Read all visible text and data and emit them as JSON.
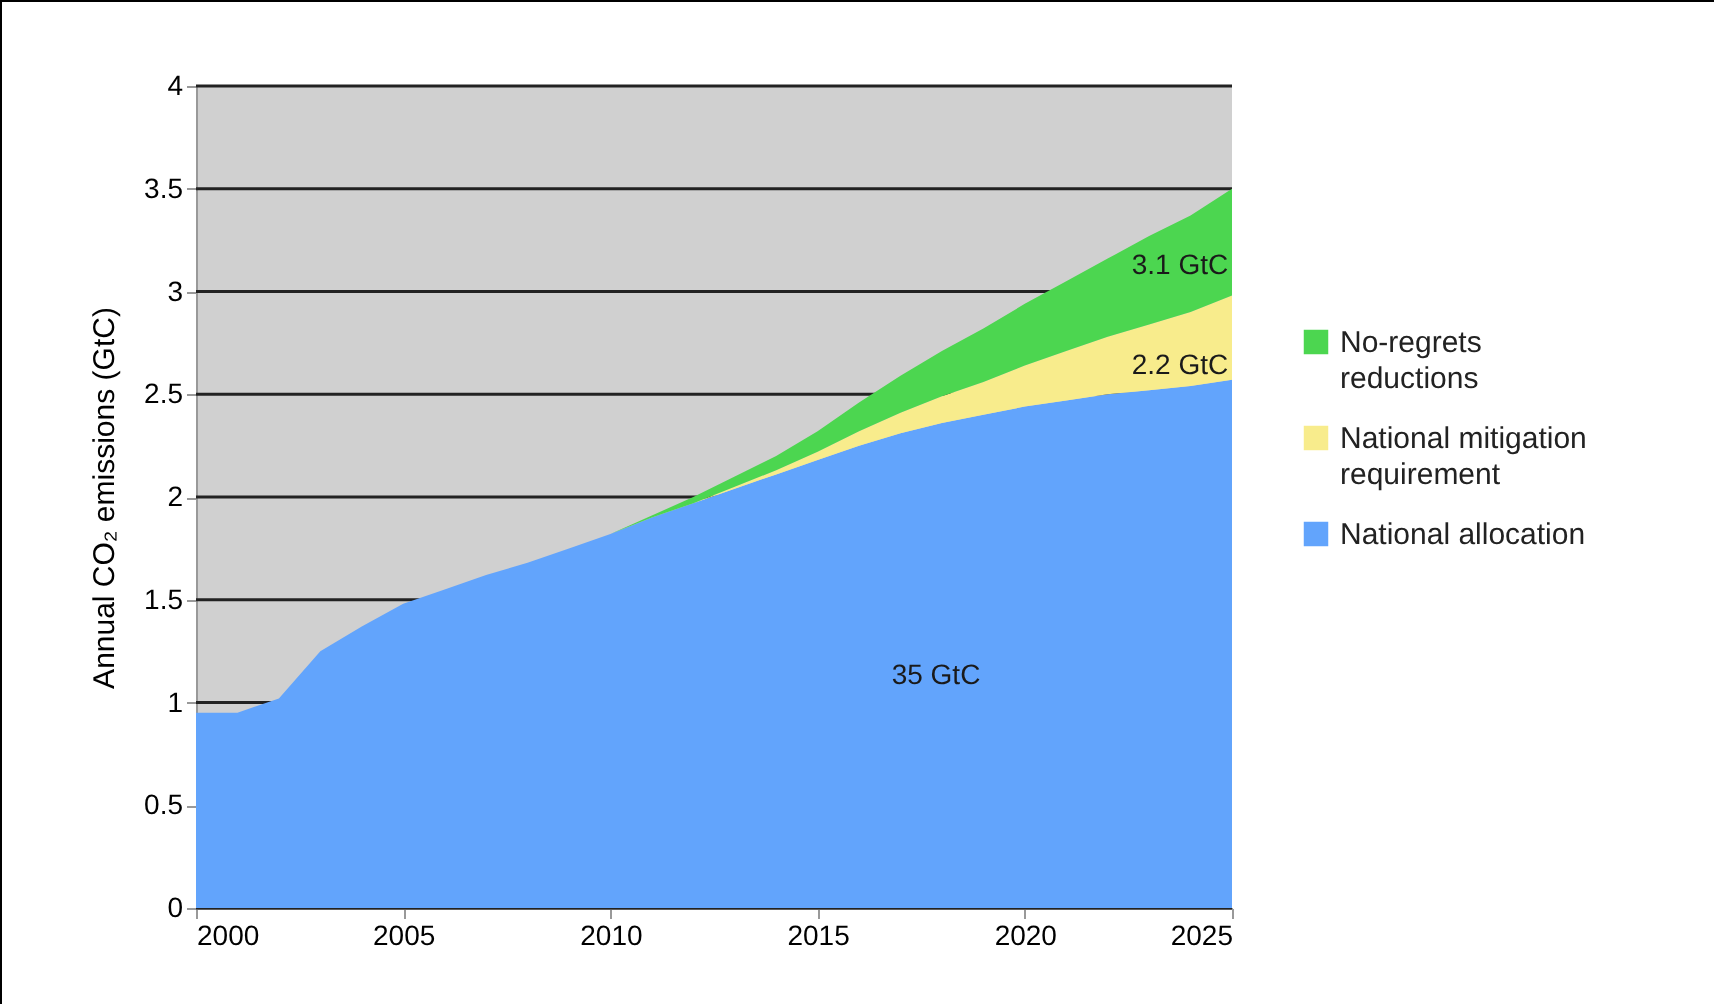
{
  "chart_data": {
    "type": "area",
    "ylabel": "Annual CO₂ emissions (GtC)",
    "stacked": true,
    "x": [
      2000,
      2001,
      2002,
      2003,
      2004,
      2005,
      2006,
      2007,
      2008,
      2009,
      2010,
      2011,
      2012,
      2013,
      2014,
      2015,
      2016,
      2017,
      2018,
      2019,
      2020,
      2021,
      2022,
      2023,
      2024,
      2025
    ],
    "series": [
      {
        "name": "National allocation",
        "color": "#62a4fc",
        "values": [
          0.95,
          0.95,
          1.02,
          1.25,
          1.37,
          1.48,
          1.55,
          1.62,
          1.68,
          1.75,
          1.82,
          1.9,
          1.97,
          2.04,
          2.11,
          2.18,
          2.25,
          2.31,
          2.36,
          2.4,
          2.44,
          2.47,
          2.5,
          2.52,
          2.54,
          2.57
        ]
      },
      {
        "name": "National mitigation requirement",
        "color": "#f8ec8c",
        "values": [
          0,
          0,
          0,
          0,
          0,
          0,
          0,
          0,
          0,
          0,
          0,
          0,
          0,
          0.01,
          0.02,
          0.04,
          0.07,
          0.1,
          0.13,
          0.16,
          0.2,
          0.24,
          0.28,
          0.32,
          0.36,
          0.41
        ]
      },
      {
        "name": "No-regrets reductions",
        "color": "#4cd650",
        "values": [
          0,
          0,
          0,
          0,
          0,
          0,
          0,
          0,
          0,
          0,
          0,
          0.01,
          0.03,
          0.05,
          0.07,
          0.1,
          0.14,
          0.18,
          0.22,
          0.26,
          0.3,
          0.34,
          0.38,
          0.43,
          0.47,
          0.52
        ]
      }
    ],
    "xlim": [
      2000,
      2025
    ],
    "xticks": [
      2000,
      2005,
      2010,
      2015,
      2020,
      2025
    ],
    "ylim": [
      0,
      4
    ],
    "yticks": [
      0,
      0.5,
      1,
      1.5,
      2,
      2.5,
      3,
      3.5,
      4
    ],
    "grid": "y",
    "legend": "right",
    "annotations": [
      "3.1 GtC",
      "2.2 GtC",
      "35 GtC"
    ]
  }
}
